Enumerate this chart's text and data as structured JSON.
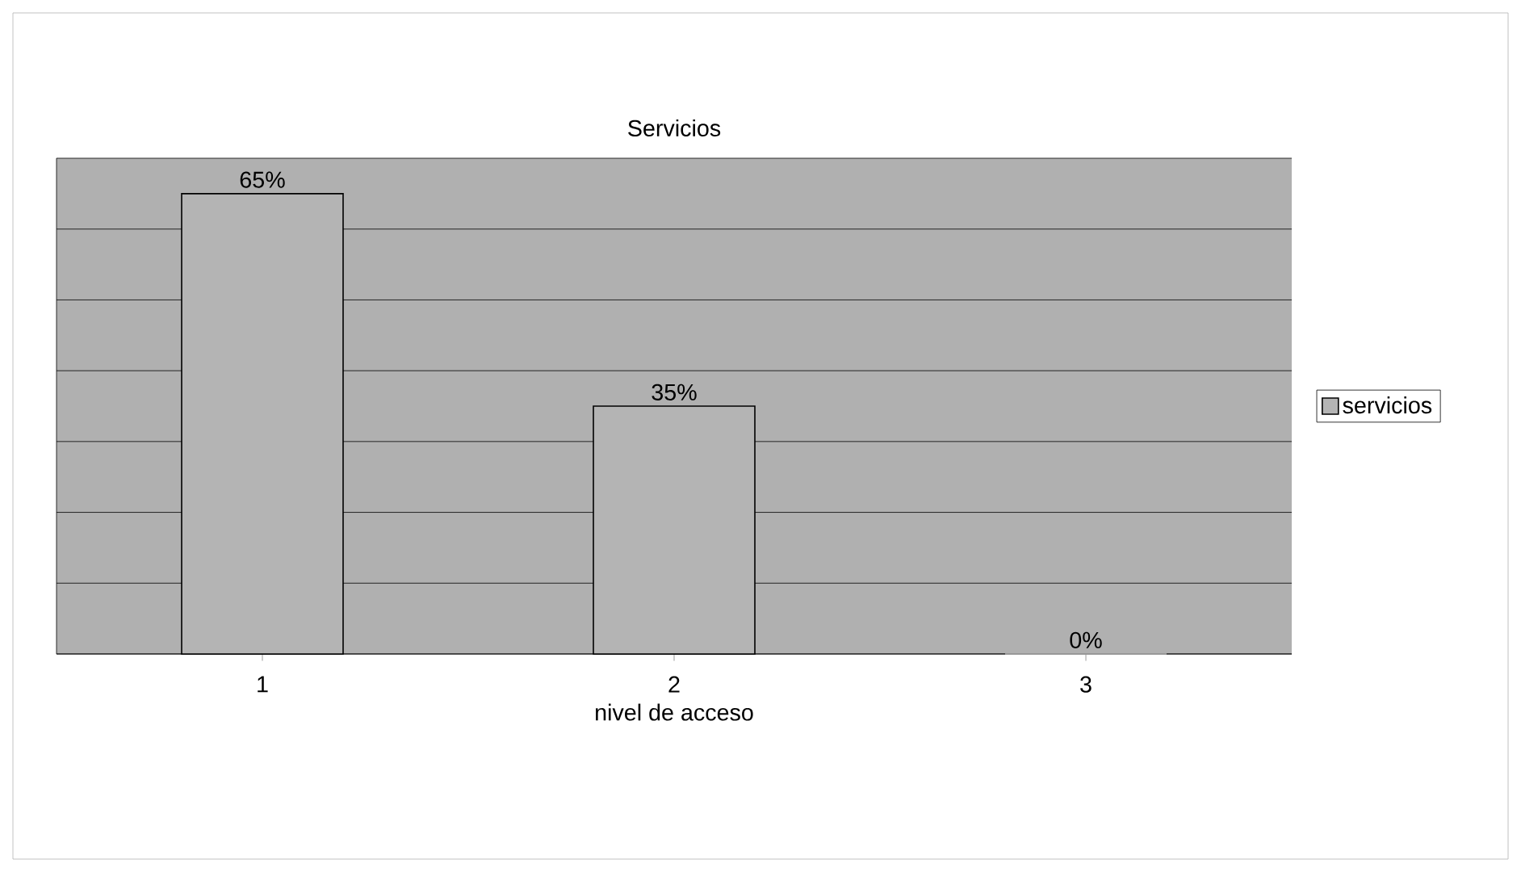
{
  "chart_data": {
    "type": "bar",
    "title": "Servicios",
    "xlabel": "nivel de acceso",
    "categories": [
      "1",
      "2",
      "3"
    ],
    "series": [
      {
        "name": "servicios",
        "color": "#b4b4b4",
        "values": [
          65,
          35,
          0
        ],
        "value_labels": [
          "65%",
          "35%",
          "0%"
        ]
      }
    ],
    "ylim": [
      0,
      70
    ],
    "yticks": [
      {
        "value": 0,
        "label": null
      },
      {
        "value": 10,
        "label": null
      },
      {
        "value": 20,
        "label": null
      },
      {
        "value": 30,
        "label": null
      },
      {
        "value": 40,
        "label": null
      },
      {
        "value": 50,
        "label": null
      },
      {
        "value": 60,
        "label": null
      },
      {
        "value": 70,
        "label": null
      }
    ],
    "tick_labels": "x",
    "grid": "y",
    "legend": "right"
  }
}
